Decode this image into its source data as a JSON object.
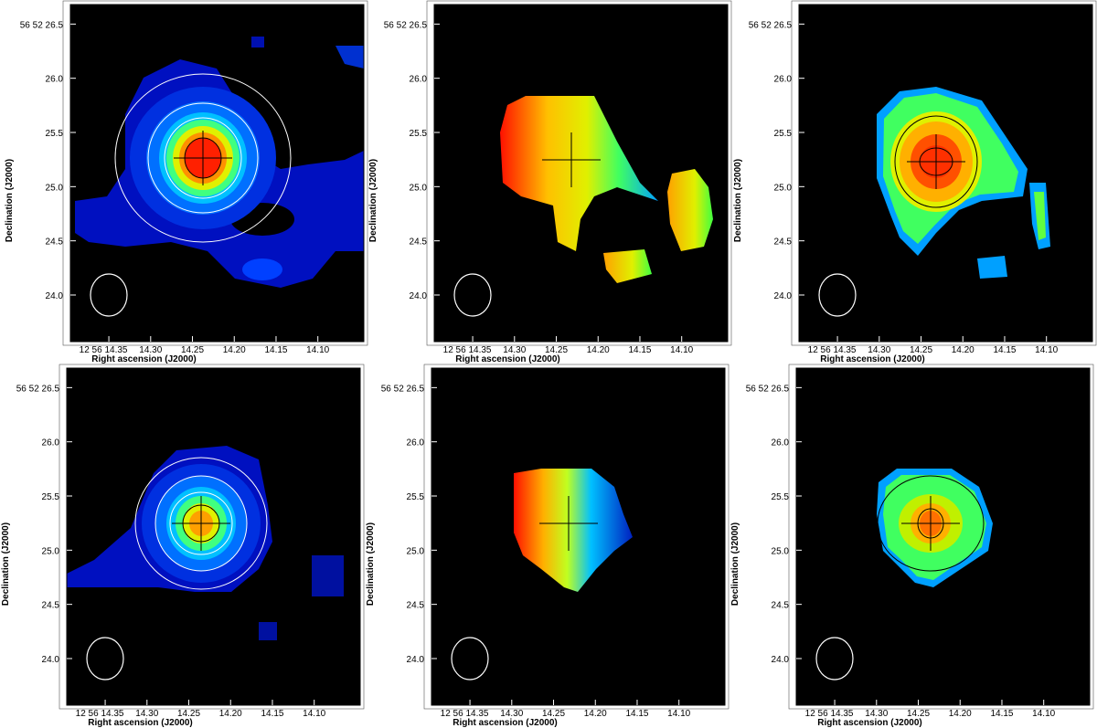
{
  "chart_data": [
    {
      "type": "image",
      "xlabel": "Right ascension (J2000)",
      "ylabel": "Declination (J2000)",
      "xlim": [
        14.396,
        14.045
      ],
      "ylim": [
        23.57,
        26.68
      ],
      "xticks": [
        {
          "value": 14.35,
          "label": "12 56 14.35"
        },
        {
          "value": 14.3,
          "label": "14.30"
        },
        {
          "value": 14.25,
          "label": "14.25"
        },
        {
          "value": 14.2,
          "label": "14.20"
        },
        {
          "value": 14.15,
          "label": "14.15"
        },
        {
          "value": 14.1,
          "label": "14.10"
        }
      ],
      "yticks": [
        {
          "value": 24.0,
          "label": "24.0"
        },
        {
          "value": 24.5,
          "label": "24.5"
        },
        {
          "value": 25.0,
          "label": "25.0"
        },
        {
          "value": 25.5,
          "label": "25.5"
        },
        {
          "value": 26.0,
          "label": "26.0"
        },
        {
          "value": 26.5,
          "label": "56 52 26.5"
        }
      ]
    },
    {
      "type": "image",
      "xlabel": "Right ascension (J2000)",
      "ylabel": "Declination (J2000)",
      "xlim": [
        14.396,
        14.045
      ],
      "ylim": [
        23.57,
        26.68
      ],
      "xticks": [
        {
          "value": 14.35,
          "label": "12 56 14.35"
        },
        {
          "value": 14.3,
          "label": "14.30"
        },
        {
          "value": 14.25,
          "label": "14.25"
        },
        {
          "value": 14.2,
          "label": "14.20"
        },
        {
          "value": 14.15,
          "label": "14.15"
        },
        {
          "value": 14.1,
          "label": "14.10"
        }
      ],
      "yticks": [
        {
          "value": 24.0,
          "label": "24.0"
        },
        {
          "value": 24.5,
          "label": "24.5"
        },
        {
          "value": 25.0,
          "label": "25.0"
        },
        {
          "value": 25.5,
          "label": "25.5"
        },
        {
          "value": 26.0,
          "label": "26.0"
        },
        {
          "value": 26.5,
          "label": "56 52 26.5"
        }
      ]
    },
    {
      "type": "image",
      "xlabel": "Right ascension (J2000)",
      "ylabel": "Declination (J2000)",
      "xlim": [
        14.396,
        14.045
      ],
      "ylim": [
        23.57,
        26.68
      ],
      "xticks": [
        {
          "value": 14.35,
          "label": "12 56 14.35"
        },
        {
          "value": 14.3,
          "label": "14.30"
        },
        {
          "value": 14.25,
          "label": "14.25"
        },
        {
          "value": 14.2,
          "label": "14.20"
        },
        {
          "value": 14.15,
          "label": "14.15"
        },
        {
          "value": 14.1,
          "label": "14.10"
        }
      ],
      "yticks": [
        {
          "value": 24.0,
          "label": "24.0"
        },
        {
          "value": 24.5,
          "label": "24.5"
        },
        {
          "value": 25.0,
          "label": "25.0"
        },
        {
          "value": 25.5,
          "label": "25.5"
        },
        {
          "value": 26.0,
          "label": "26.0"
        },
        {
          "value": 26.5,
          "label": "56 52 26.5"
        }
      ]
    },
    {
      "type": "image",
      "xlabel": "Right ascension (J2000)",
      "ylabel": "Declination (J2000)",
      "xlim": [
        14.396,
        14.045
      ],
      "ylim": [
        23.57,
        26.68
      ],
      "xticks": [
        {
          "value": 14.35,
          "label": "12 56 14.35"
        },
        {
          "value": 14.3,
          "label": "14.30"
        },
        {
          "value": 14.25,
          "label": "14.25"
        },
        {
          "value": 14.2,
          "label": "14.20"
        },
        {
          "value": 14.15,
          "label": "14.15"
        },
        {
          "value": 14.1,
          "label": "14.10"
        }
      ],
      "yticks": [
        {
          "value": 24.0,
          "label": "24.0"
        },
        {
          "value": 24.5,
          "label": "24.5"
        },
        {
          "value": 25.0,
          "label": "25.0"
        },
        {
          "value": 25.5,
          "label": "25.5"
        },
        {
          "value": 26.0,
          "label": "26.0"
        },
        {
          "value": 26.5,
          "label": "56 52 26.5"
        }
      ]
    },
    {
      "type": "image",
      "xlabel": "Right ascension (J2000)",
      "ylabel": "Declination (J2000)",
      "xlim": [
        14.396,
        14.045
      ],
      "ylim": [
        23.57,
        26.68
      ],
      "xticks": [
        {
          "value": 14.35,
          "label": "12 56 14.35"
        },
        {
          "value": 14.3,
          "label": "14.30"
        },
        {
          "value": 14.25,
          "label": "14.25"
        },
        {
          "value": 14.2,
          "label": "14.20"
        },
        {
          "value": 14.15,
          "label": "14.15"
        },
        {
          "value": 14.1,
          "label": "14.10"
        }
      ],
      "yticks": [
        {
          "value": 24.0,
          "label": "24.0"
        },
        {
          "value": 24.5,
          "label": "24.5"
        },
        {
          "value": 25.0,
          "label": "25.0"
        },
        {
          "value": 25.5,
          "label": "25.5"
        },
        {
          "value": 26.0,
          "label": "26.0"
        },
        {
          "value": 26.5,
          "label": "56 52 26.5"
        }
      ]
    },
    {
      "type": "image",
      "xlabel": "Right ascension (J2000)",
      "ylabel": "Declination (J2000)",
      "xlim": [
        14.396,
        14.045
      ],
      "ylim": [
        23.57,
        26.68
      ],
      "xticks": [
        {
          "value": 14.35,
          "label": "12 56 14.35"
        },
        {
          "value": 14.3,
          "label": "14.30"
        },
        {
          "value": 14.25,
          "label": "14.25"
        },
        {
          "value": 14.2,
          "label": "14.20"
        },
        {
          "value": 14.15,
          "label": "14.15"
        },
        {
          "value": 14.1,
          "label": "14.10"
        }
      ],
      "yticks": [
        {
          "value": 24.0,
          "label": "24.0"
        },
        {
          "value": 24.5,
          "label": "24.5"
        },
        {
          "value": 25.0,
          "label": "25.0"
        },
        {
          "value": 25.5,
          "label": "25.5"
        },
        {
          "value": 26.0,
          "label": "26.0"
        },
        {
          "value": 26.5,
          "label": "56 52 26.5"
        }
      ]
    }
  ]
}
